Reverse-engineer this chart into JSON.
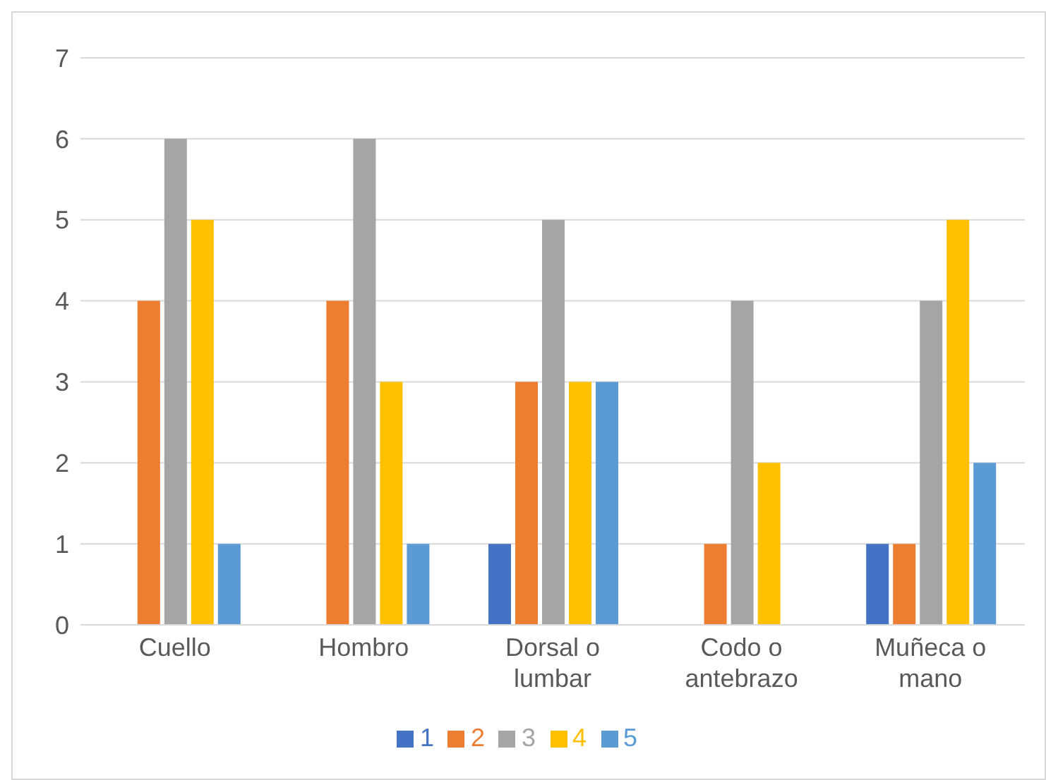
{
  "chart_data": {
    "type": "bar",
    "categories": [
      "Cuello",
      "Hombro",
      "Dorsal o lumbar",
      "Codo o antebrazo",
      "Muñeca o mano"
    ],
    "series": [
      {
        "name": "1",
        "color": "#4472c4",
        "values": [
          0,
          0,
          1,
          0,
          1
        ]
      },
      {
        "name": "2",
        "color": "#ed7d31",
        "values": [
          4,
          4,
          3,
          1,
          1
        ]
      },
      {
        "name": "3",
        "color": "#a5a5a5",
        "values": [
          6,
          6,
          5,
          4,
          4
        ]
      },
      {
        "name": "4",
        "color": "#ffc000",
        "values": [
          5,
          3,
          3,
          2,
          5
        ]
      },
      {
        "name": "5",
        "color": "#5b9bd5",
        "values": [
          1,
          1,
          3,
          0,
          2
        ]
      }
    ],
    "ylim": [
      0,
      7
    ],
    "yticks": [
      0,
      1,
      2,
      3,
      4,
      5,
      6,
      7
    ],
    "grid": "y",
    "legend": "bottom"
  }
}
